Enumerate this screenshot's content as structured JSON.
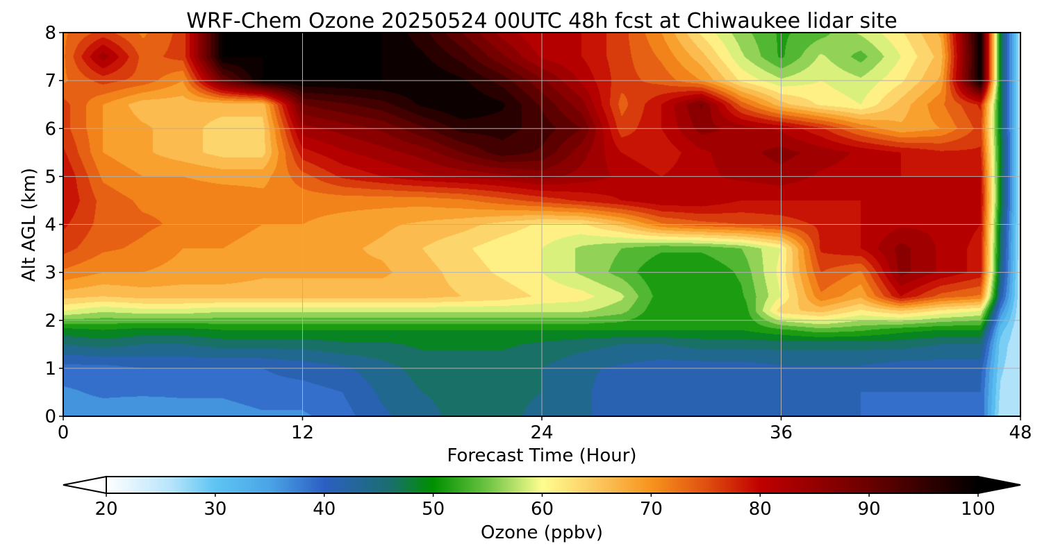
{
  "chart_data": {
    "type": "heatmap",
    "title": "WRF-Chem Ozone  20250524 00UTC 48h fcst at Chiwaukee lidar site",
    "xlabel": "Forecast Time (Hour)",
    "ylabel": "Alt AGL (km)",
    "xlim": [
      0,
      48
    ],
    "ylim": [
      0,
      8
    ],
    "xticks": [
      0,
      12,
      24,
      36,
      48
    ],
    "yticks": [
      0,
      1,
      2,
      3,
      4,
      5,
      6,
      7,
      8
    ],
    "grid": true,
    "x": [
      0,
      2,
      4,
      6,
      8,
      10,
      12,
      14,
      16,
      18,
      20,
      22,
      24,
      26,
      28,
      30,
      32,
      34,
      36,
      38,
      40,
      42,
      44,
      46,
      47,
      48
    ],
    "y": [
      0,
      0.5,
      1,
      1.5,
      1.8,
      2.2,
      2.5,
      3,
      3.5,
      4,
      4.5,
      5,
      5.5,
      6,
      6.5,
      7,
      7.5,
      8
    ],
    "z": [
      [
        36,
        36,
        35,
        36,
        36,
        37,
        37,
        39,
        42,
        44,
        46,
        46,
        44,
        43,
        41,
        40,
        40,
        40,
        40,
        40,
        40,
        39,
        39,
        40,
        26,
        25
      ],
      [
        37,
        38,
        38,
        38,
        38,
        39,
        39,
        40,
        43,
        45,
        46,
        46,
        45,
        43,
        41,
        40,
        40,
        40,
        40,
        40,
        40,
        40,
        40,
        40,
        27,
        25
      ],
      [
        39,
        39,
        40,
        40,
        40,
        40,
        41,
        42,
        44,
        46,
        46,
        46,
        45,
        43,
        42,
        41,
        41,
        41,
        42,
        42,
        42,
        41,
        41,
        41,
        28,
        25
      ],
      [
        45,
        46,
        45,
        45,
        46,
        46,
        46,
        47,
        47,
        48,
        48,
        48,
        47,
        46,
        45,
        45,
        46,
        46,
        46,
        46,
        46,
        46,
        45,
        45,
        29,
        25
      ],
      [
        49,
        50,
        49,
        49,
        50,
        50,
        50,
        50,
        50,
        50,
        50,
        50,
        50,
        50,
        50,
        50,
        50,
        50,
        52,
        54,
        53,
        51,
        50,
        50,
        31,
        25
      ],
      [
        60,
        58,
        59,
        59,
        58,
        58,
        58,
        58,
        58,
        58,
        58,
        58,
        58,
        58,
        56,
        50,
        50,
        50,
        64,
        66,
        62,
        65,
        62,
        60,
        37,
        25
      ],
      [
        66,
        65,
        66,
        66,
        66,
        66,
        66,
        66,
        66,
        66,
        65,
        64,
        62,
        61,
        58,
        51,
        50,
        52,
        60,
        72,
        68,
        80,
        74,
        72,
        42,
        25
      ],
      [
        72,
        70,
        70,
        69,
        69,
        68,
        68,
        68,
        68,
        66,
        64,
        62,
        60,
        57,
        54,
        50,
        50,
        53,
        61,
        75,
        72,
        86,
        82,
        79,
        45,
        25
      ],
      [
        76,
        73,
        72,
        70,
        70,
        69,
        68,
        68,
        67,
        65,
        63,
        61,
        60,
        57,
        55,
        53,
        53,
        55,
        60,
        78,
        80,
        86,
        82,
        79,
        46,
        25
      ],
      [
        78,
        74,
        73,
        72,
        71,
        70,
        70,
        69,
        68,
        67,
        66,
        64,
        62,
        62,
        66,
        72,
        74,
        75,
        76,
        78,
        80,
        82,
        82,
        80,
        47,
        25
      ],
      [
        80,
        74,
        72,
        72,
        72,
        71,
        71,
        71,
        71,
        71,
        72,
        74,
        76,
        78,
        80,
        82,
        82,
        80,
        80,
        80,
        80,
        80,
        81,
        81,
        49,
        25
      ],
      [
        80,
        72,
        70,
        70,
        69,
        69,
        74,
        78,
        80,
        82,
        83,
        84,
        86,
        84,
        82,
        80,
        82,
        83,
        84,
        82,
        81,
        80,
        80,
        80,
        49,
        25
      ],
      [
        78,
        70,
        68,
        66,
        64,
        64,
        79,
        82,
        84,
        86,
        90,
        94,
        92,
        86,
        80,
        78,
        82,
        84,
        86,
        84,
        82,
        80,
        78,
        78,
        49,
        25
      ],
      [
        76,
        70,
        68,
        66,
        64,
        64,
        84,
        86,
        88,
        92,
        96,
        96,
        94,
        90,
        76,
        80,
        86,
        84,
        82,
        78,
        72,
        68,
        70,
        76,
        48,
        25
      ],
      [
        76,
        70,
        66,
        66,
        66,
        66,
        90,
        92,
        94,
        98,
        100,
        98,
        92,
        86,
        74,
        80,
        88,
        74,
        66,
        62,
        60,
        66,
        72,
        78,
        48,
        25
      ],
      [
        72,
        76,
        74,
        70,
        90,
        100,
        100,
        100,
        100,
        100,
        98,
        94,
        88,
        82,
        76,
        74,
        70,
        62,
        58,
        60,
        58,
        62,
        68,
        100,
        48,
        25
      ],
      [
        72,
        84,
        74,
        76,
        100,
        100,
        100,
        100,
        100,
        98,
        94,
        88,
        82,
        80,
        76,
        72,
        66,
        58,
        52,
        58,
        54,
        60,
        66,
        100,
        48,
        25
      ],
      [
        72,
        76,
        72,
        76,
        100,
        100,
        100,
        100,
        100,
        96,
        90,
        84,
        80,
        80,
        76,
        70,
        62,
        56,
        52,
        54,
        58,
        62,
        68,
        100,
        48,
        25
      ]
    ],
    "colorbar": {
      "label": "Ozone  (ppbv)",
      "min": 20,
      "max": 100,
      "ticks": [
        20,
        30,
        40,
        50,
        60,
        70,
        80,
        90,
        100
      ],
      "extend": "both",
      "stops": [
        {
          "v": 20,
          "c": "#ffffff"
        },
        {
          "v": 26,
          "c": "#b6e4fb"
        },
        {
          "v": 30,
          "c": "#5ec4f2"
        },
        {
          "v": 35,
          "c": "#4ba4e6"
        },
        {
          "v": 40,
          "c": "#2c5fc2"
        },
        {
          "v": 46,
          "c": "#1a6e6e"
        },
        {
          "v": 50,
          "c": "#009000"
        },
        {
          "v": 55,
          "c": "#6ec444"
        },
        {
          "v": 60,
          "c": "#fefe90"
        },
        {
          "v": 65,
          "c": "#fcc860"
        },
        {
          "v": 70,
          "c": "#f7941d"
        },
        {
          "v": 75,
          "c": "#e05010"
        },
        {
          "v": 80,
          "c": "#c00000"
        },
        {
          "v": 90,
          "c": "#6a0000"
        },
        {
          "v": 100,
          "c": "#000000"
        }
      ]
    }
  }
}
